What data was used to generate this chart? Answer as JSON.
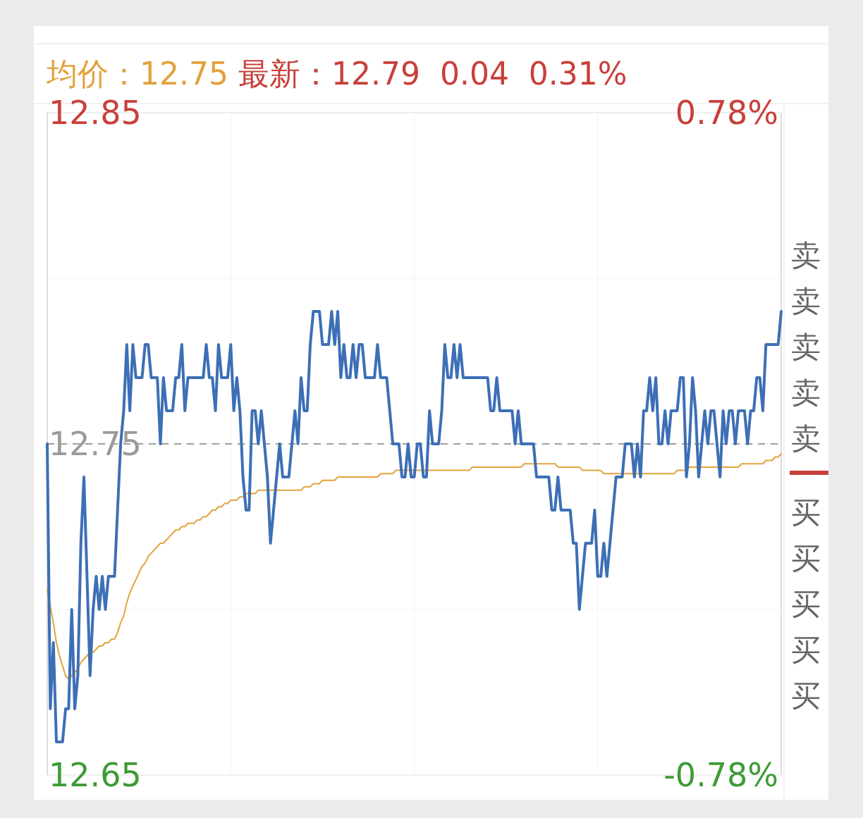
{
  "chart_data": {
    "type": "line",
    "title": "均价：12.75",
    "subtitle": "最新：12.79  0.04  0.31%",
    "categories": [
      null,
      null,
      null,
      null,
      null,
      null,
      null,
      null,
      null,
      null,
      null,
      null,
      null,
      null,
      null,
      null,
      null,
      null,
      null,
      null,
      null,
      null,
      null,
      null,
      null,
      null,
      null,
      null,
      null,
      null,
      null,
      null,
      null,
      null,
      null,
      null,
      null,
      null,
      null,
      null,
      null,
      null,
      null,
      null,
      null,
      null,
      null,
      null,
      null,
      null,
      null,
      null,
      null,
      null,
      null,
      null,
      null,
      null,
      null,
      null,
      null,
      null,
      null,
      null,
      null,
      null,
      null,
      null,
      null,
      null,
      null,
      null,
      null,
      null,
      null,
      null,
      null,
      null,
      null,
      null,
      null,
      null,
      null,
      null,
      null,
      null,
      null,
      null,
      null,
      null,
      null,
      null,
      null,
      null,
      null,
      null,
      null,
      null,
      null,
      null,
      null,
      null,
      null,
      null,
      null,
      null,
      null,
      null,
      null,
      null,
      null,
      null,
      null,
      null,
      null,
      null,
      null,
      null,
      null,
      null,
      null,
      null,
      null,
      null,
      null,
      null,
      null,
      null,
      null,
      null,
      null,
      null,
      null,
      null,
      null,
      null,
      null,
      null,
      null,
      null,
      null,
      null,
      null,
      null,
      null,
      null,
      null,
      null,
      null,
      null,
      null,
      null,
      null,
      null,
      null,
      null,
      null,
      null,
      null,
      null,
      null,
      null,
      null,
      null,
      null,
      null,
      null,
      null,
      null,
      null,
      null,
      null,
      null,
      null,
      null,
      null,
      null,
      null,
      null,
      null,
      null,
      null,
      null,
      null,
      null,
      null,
      null,
      null,
      null,
      null,
      null,
      null,
      null,
      null,
      null,
      null,
      null,
      null,
      null,
      null,
      null,
      null,
      null,
      null,
      null,
      null,
      null,
      null,
      null,
      null,
      null,
      null,
      null,
      null,
      null,
      null,
      null,
      null,
      null,
      null,
      null,
      null,
      null,
      null,
      null,
      null,
      null,
      null,
      null,
      null,
      null,
      null,
      null,
      null,
      null,
      null,
      null,
      null,
      null,
      null,
      null
    ],
    "ylim": [
      12.65,
      12.85
    ],
    "yticks": [
      12.65,
      12.75,
      12.85
    ],
    "y2lim": [
      -0.78,
      0.78
    ],
    "y2ticks": [
      {
        "value": -0.78,
        "label": "-0.78%"
      },
      {
        "value": 0.78,
        "label": "0.78%"
      }
    ],
    "grid": true,
    "ref_lines": [
      {
        "axis": "y",
        "value": 12.75,
        "color": "#9e9e9e",
        "line_style": "dashed"
      }
    ],
    "annotations": [
      "卖",
      "卖",
      "卖",
      "卖",
      "卖",
      "买",
      "买",
      "买",
      "买",
      "买"
    ],
    "series": [
      {
        "color": "#3d6fb6",
        "values": [
          12.75,
          12.67,
          12.69,
          12.66,
          12.66,
          12.66,
          12.67,
          12.67,
          12.7,
          12.67,
          12.68,
          12.72,
          12.74,
          12.71,
          12.68,
          12.7,
          12.71,
          12.7,
          12.71,
          12.7,
          12.71,
          12.71,
          12.71,
          12.73,
          12.75,
          12.76,
          12.78,
          12.76,
          12.78,
          12.77,
          12.77,
          12.77,
          12.78,
          12.78,
          12.77,
          12.77,
          12.77,
          12.75,
          12.77,
          12.76,
          12.76,
          12.76,
          12.77,
          12.77,
          12.78,
          12.76,
          12.77,
          12.77,
          12.77,
          12.77,
          12.77,
          12.77,
          12.78,
          12.77,
          12.77,
          12.76,
          12.78,
          12.77,
          12.77,
          12.77,
          12.78,
          12.76,
          12.77,
          12.76,
          12.74,
          12.73,
          12.73,
          12.76,
          12.76,
          12.75,
          12.76,
          12.75,
          12.74,
          12.72,
          12.73,
          12.74,
          12.75,
          12.74,
          12.74,
          12.74,
          12.75,
          12.76,
          12.75,
          12.77,
          12.76,
          12.76,
          12.78,
          12.79,
          12.79,
          12.79,
          12.78,
          12.78,
          12.78,
          12.79,
          12.78,
          12.79,
          12.77,
          12.78,
          12.77,
          12.77,
          12.78,
          12.77,
          12.78,
          12.78,
          12.77,
          12.77,
          12.77,
          12.77,
          12.78,
          12.77,
          12.77,
          12.77,
          12.76,
          12.75,
          12.75,
          12.75,
          12.74,
          12.74,
          12.75,
          12.74,
          12.74,
          12.75,
          12.75,
          12.74,
          12.74,
          12.76,
          12.75,
          12.75,
          12.75,
          12.76,
          12.78,
          12.77,
          12.77,
          12.78,
          12.77,
          12.78,
          12.77,
          12.77,
          12.77,
          12.77,
          12.77,
          12.77,
          12.77,
          12.77,
          12.77,
          12.76,
          12.76,
          12.77,
          12.76,
          12.76,
          12.76,
          12.76,
          12.76,
          12.75,
          12.76,
          12.75,
          12.75,
          12.75,
          12.75,
          12.75,
          12.74,
          12.74,
          12.74,
          12.74,
          12.74,
          12.73,
          12.73,
          12.74,
          12.73,
          12.73,
          12.73,
          12.73,
          12.72,
          12.72,
          12.7,
          12.71,
          12.72,
          12.72,
          12.72,
          12.73,
          12.71,
          12.71,
          12.72,
          12.71,
          12.72,
          12.73,
          12.74,
          12.74,
          12.74,
          12.75,
          12.75,
          12.75,
          12.74,
          12.75,
          12.74,
          12.76,
          12.76,
          12.77,
          12.76,
          12.77,
          12.75,
          12.75,
          12.76,
          12.75,
          12.76,
          12.76,
          12.76,
          12.77,
          12.77,
          12.74,
          12.75,
          12.77,
          12.76,
          12.74,
          12.75,
          12.76,
          12.75,
          12.76,
          12.76,
          12.75,
          12.74,
          12.76,
          12.75,
          12.76,
          12.76,
          12.75,
          12.76,
          12.76,
          12.76,
          12.75,
          12.76,
          12.76,
          12.77,
          12.77,
          12.76,
          12.78,
          12.78,
          12.78,
          12.78,
          12.78,
          12.79
        ]
      },
      {
        "color": "#e3a33c",
        "values": [
          12.706,
          12.701,
          12.696,
          12.69,
          12.686,
          12.683,
          12.68,
          12.679,
          12.68,
          12.681,
          12.682,
          12.684,
          12.685,
          12.686,
          12.687,
          12.687,
          12.688,
          12.689,
          12.689,
          12.69,
          12.69,
          12.691,
          12.691,
          12.693,
          12.696,
          12.698,
          12.702,
          12.705,
          12.707,
          12.709,
          12.711,
          12.713,
          12.714,
          12.716,
          12.717,
          12.718,
          12.719,
          12.72,
          12.72,
          12.721,
          12.722,
          12.723,
          12.724,
          12.724,
          12.725,
          12.725,
          12.726,
          12.726,
          12.726,
          12.727,
          12.727,
          12.728,
          12.728,
          12.729,
          12.73,
          12.73,
          12.731,
          12.731,
          12.732,
          12.732,
          12.733,
          12.733,
          12.733,
          12.734,
          12.734,
          12.735,
          12.735,
          12.735,
          12.735,
          12.736,
          12.736,
          12.736,
          12.736,
          12.736,
          12.736,
          12.736,
          12.736,
          12.736,
          12.736,
          12.736,
          12.736,
          12.736,
          12.736,
          12.736,
          12.737,
          12.737,
          12.737,
          12.738,
          12.738,
          12.738,
          12.739,
          12.739,
          12.739,
          12.739,
          12.739,
          12.74,
          12.74,
          12.74,
          12.74,
          12.74,
          12.74,
          12.74,
          12.74,
          12.74,
          12.74,
          12.74,
          12.74,
          12.74,
          12.74,
          12.741,
          12.741,
          12.741,
          12.741,
          12.741,
          12.742,
          12.742,
          12.742,
          12.742,
          12.742,
          12.742,
          12.742,
          12.742,
          12.742,
          12.742,
          12.742,
          12.742,
          12.742,
          12.742,
          12.742,
          12.742,
          12.742,
          12.742,
          12.742,
          12.742,
          12.742,
          12.742,
          12.742,
          12.742,
          12.742,
          12.743,
          12.743,
          12.743,
          12.743,
          12.743,
          12.743,
          12.743,
          12.743,
          12.743,
          12.743,
          12.743,
          12.743,
          12.743,
          12.743,
          12.743,
          12.743,
          12.743,
          12.744,
          12.744,
          12.744,
          12.744,
          12.744,
          12.744,
          12.744,
          12.744,
          12.744,
          12.744,
          12.744,
          12.743,
          12.743,
          12.743,
          12.743,
          12.743,
          12.743,
          12.743,
          12.743,
          12.742,
          12.742,
          12.742,
          12.742,
          12.742,
          12.742,
          12.742,
          12.741,
          12.741,
          12.741,
          12.741,
          12.741,
          12.741,
          12.741,
          12.741,
          12.741,
          12.741,
          12.741,
          12.741,
          12.741,
          12.741,
          12.741,
          12.741,
          12.741,
          12.741,
          12.741,
          12.741,
          12.741,
          12.741,
          12.741,
          12.741,
          12.742,
          12.742,
          12.742,
          12.742,
          12.743,
          12.743,
          12.743,
          12.743,
          12.743,
          12.743,
          12.743,
          12.743,
          12.743,
          12.743,
          12.743,
          12.743,
          12.743,
          12.743,
          12.743,
          12.743,
          12.743,
          12.744,
          12.744,
          12.744,
          12.744,
          12.744,
          12.744,
          12.744,
          12.744,
          12.745,
          12.745,
          12.745,
          12.746,
          12.746,
          12.747
        ]
      }
    ]
  }
}
